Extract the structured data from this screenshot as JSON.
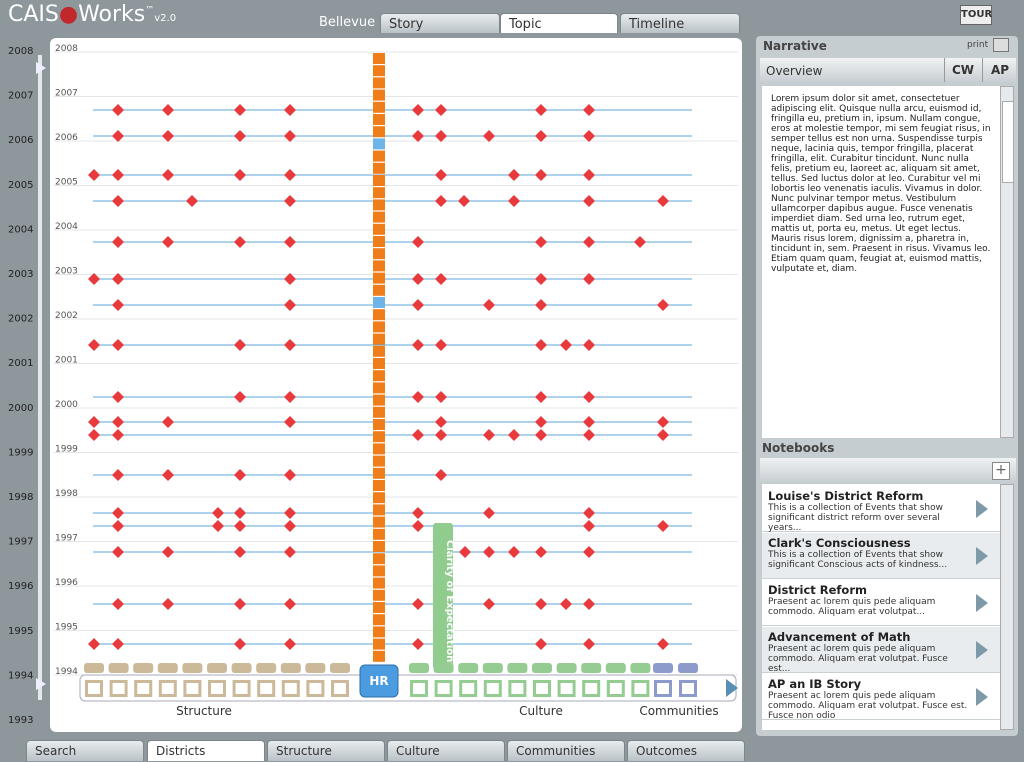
{
  "header": {
    "brand_left": "CAIS",
    "brand_right": "Works",
    "trademark": "™",
    "version": "v2.0",
    "tour": "TOUR"
  },
  "top_tabs": {
    "location": "Bellevue",
    "tabs": [
      "Story",
      "Topic",
      "Timeline"
    ]
  },
  "timeline": {
    "outer_years": [
      "2008",
      "2007",
      "2006",
      "2005",
      "2004",
      "2003",
      "2002",
      "2001",
      "2000",
      "1999",
      "1998",
      "1997",
      "1996",
      "1995",
      "1994",
      "1993"
    ],
    "inner_years": [
      "2008",
      "2007",
      "2006",
      "2005",
      "2004",
      "2003",
      "2002",
      "2001",
      "2000",
      "1999",
      "1998",
      "1997",
      "1996",
      "1995",
      "1994"
    ],
    "hr": "HR",
    "clarity": "Clarity of Expectations",
    "groups": [
      "Structure",
      "Culture",
      "Communities"
    ]
  },
  "narrative": {
    "title": "Narrative",
    "print": "print",
    "tabs": [
      "Overview",
      "CW",
      "AP"
    ],
    "text": "Lorem ipsum dolor sit amet, consectetuer adipiscing elit. Quisque nulla arcu, euismod id, fringilla eu, pretium in, ipsum. Nullam congue, eros at molestie tempor, mi sem feugiat risus, in semper tellus est non urna. Suspendisse turpis neque, lacinia quis, tempor fringilla, placerat fringilla, elit. Curabitur tincidunt. Nunc nulla felis, pretium eu, laoreet ac, aliquam sit amet, tellus. Sed luctus dolor at leo. Curabitur vel mi lobortis leo venenatis iaculis. Vivamus in dolor. Nunc pulvinar tempor metus. Vestibulum ullamcorper dapibus augue. Fusce venenatis imperdiet diam. Sed urna leo, rutrum eget, mattis ut, porta eu, metus. Ut eget lectus. Mauris risus lorem, dignissim a, pharetra in, tincidunt in, sem. Praesent in risus. Vivamus leo. Etiam quam quam, feugiat at, euismod mattis, vulputate et, diam."
  },
  "notebooks": {
    "title": "Notebooks",
    "items": [
      {
        "title": "Louise's District Reform",
        "desc": "This is a collection of Events that show significant district reform over several years..."
      },
      {
        "title": "Clark's Consciousness",
        "desc": "This is a collection of Events that show significant Conscious acts of kindness..."
      },
      {
        "title": "District Reform",
        "desc": "Praesent ac lorem quis pede aliquam commodo. Aliquam erat volutpat..."
      },
      {
        "title": "Advancement of Math",
        "desc": "Praesent ac lorem quis pede aliquam commodo. Aliquam erat volutpat. Fusce est..."
      },
      {
        "title": "AP an IB Story",
        "desc": "Praesent ac lorem quis pede aliquam commodo. Aliquam erat volutpat. Fusce est. Fusce non odio"
      }
    ]
  },
  "bottom_tabs": [
    "Search",
    "Districts",
    "Structure",
    "Culture",
    "Communities",
    "Outcomes"
  ]
}
